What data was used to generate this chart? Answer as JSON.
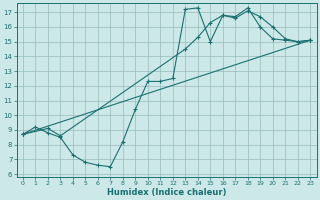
{
  "title": "",
  "xlabel": "Humidex (Indice chaleur)",
  "bg_color": "#cce8e8",
  "line_color": "#1a7070",
  "grid_color": "#99bbbb",
  "xlim": [
    -0.5,
    23.5
  ],
  "ylim": [
    5.8,
    17.6
  ],
  "xticks": [
    0,
    1,
    2,
    3,
    4,
    5,
    6,
    7,
    8,
    9,
    10,
    11,
    12,
    13,
    14,
    15,
    16,
    17,
    18,
    19,
    20,
    21,
    22,
    23
  ],
  "yticks": [
    6,
    7,
    8,
    9,
    10,
    11,
    12,
    13,
    14,
    15,
    16,
    17
  ],
  "line1_x": [
    0,
    1,
    2,
    3,
    4,
    5,
    6,
    7,
    8,
    9,
    10,
    11,
    12,
    13,
    14,
    15,
    16,
    17,
    18,
    19,
    20,
    21,
    22,
    23
  ],
  "line1_y": [
    8.7,
    9.2,
    8.8,
    8.5,
    7.3,
    6.8,
    6.6,
    6.5,
    8.2,
    10.4,
    12.3,
    12.3,
    12.5,
    17.2,
    17.3,
    15.0,
    16.8,
    16.7,
    17.3,
    16.0,
    15.2,
    15.1,
    15.0,
    15.1
  ],
  "line2_x": [
    0,
    2,
    3,
    13,
    14,
    15,
    16,
    17,
    18,
    19,
    20,
    21,
    22,
    23
  ],
  "line2_y": [
    8.7,
    9.1,
    8.6,
    14.5,
    15.3,
    16.3,
    16.8,
    16.6,
    17.1,
    16.7,
    16.0,
    15.2,
    15.0,
    15.1
  ],
  "line3_x": [
    0,
    23
  ],
  "line3_y": [
    8.7,
    15.1
  ]
}
